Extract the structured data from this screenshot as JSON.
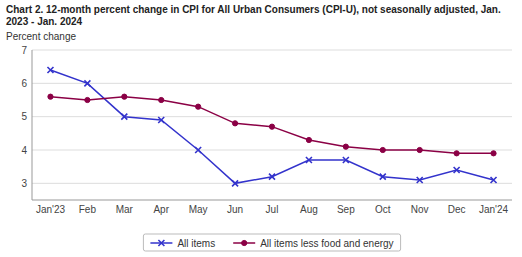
{
  "chart_data": {
    "type": "line",
    "title": "Chart 2. 12-month percent change in CPI for All Urban Consumers (CPI-U), not seasonally adjusted, Jan. 2023 - Jan. 2024",
    "y_label": "Percent change",
    "categories": [
      "Jan'23",
      "Feb",
      "Mar",
      "Apr",
      "May",
      "Jun",
      "Jul",
      "Aug",
      "Sep",
      "Oct",
      "Nov",
      "Dec",
      "Jan'24"
    ],
    "series": [
      {
        "name": "All items",
        "color": "#3333cc",
        "marker": "x",
        "values": [
          6.4,
          6.0,
          5.0,
          4.9,
          4.0,
          3.0,
          3.2,
          3.7,
          3.7,
          3.2,
          3.1,
          3.4,
          3.1
        ]
      },
      {
        "name": "All items less food and energy",
        "color": "#8b0045",
        "marker": "o",
        "values": [
          5.6,
          5.5,
          5.6,
          5.5,
          5.3,
          4.8,
          4.7,
          4.3,
          4.1,
          4.0,
          4.0,
          3.9,
          3.9
        ]
      }
    ],
    "ylim": [
      2.5,
      7.0
    ],
    "yticks": [
      3,
      4,
      5,
      6,
      7
    ],
    "grid": true,
    "legend": "bottom"
  }
}
